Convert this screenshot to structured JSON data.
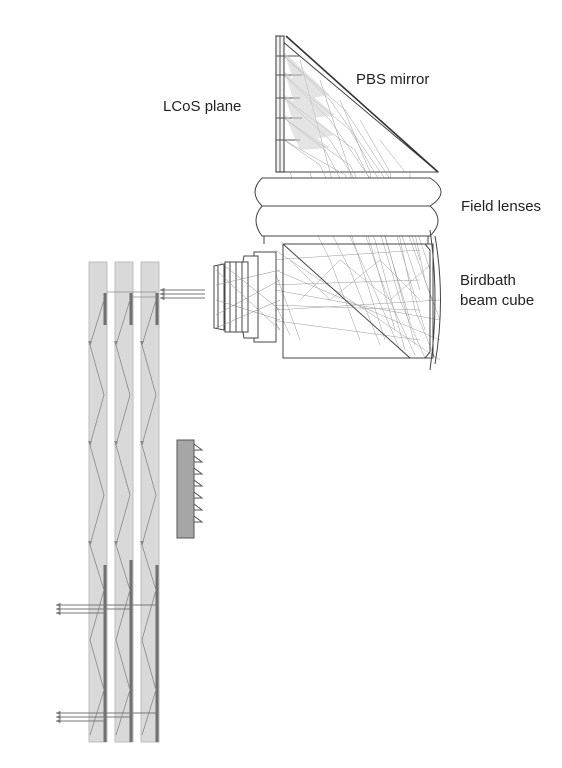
{
  "labels": {
    "lcos": "LCoS plane",
    "pbs": "PBS mirror",
    "field": "Field lenses",
    "birdbath_1": "Birdbath",
    "birdbath_2": "beam cube"
  }
}
